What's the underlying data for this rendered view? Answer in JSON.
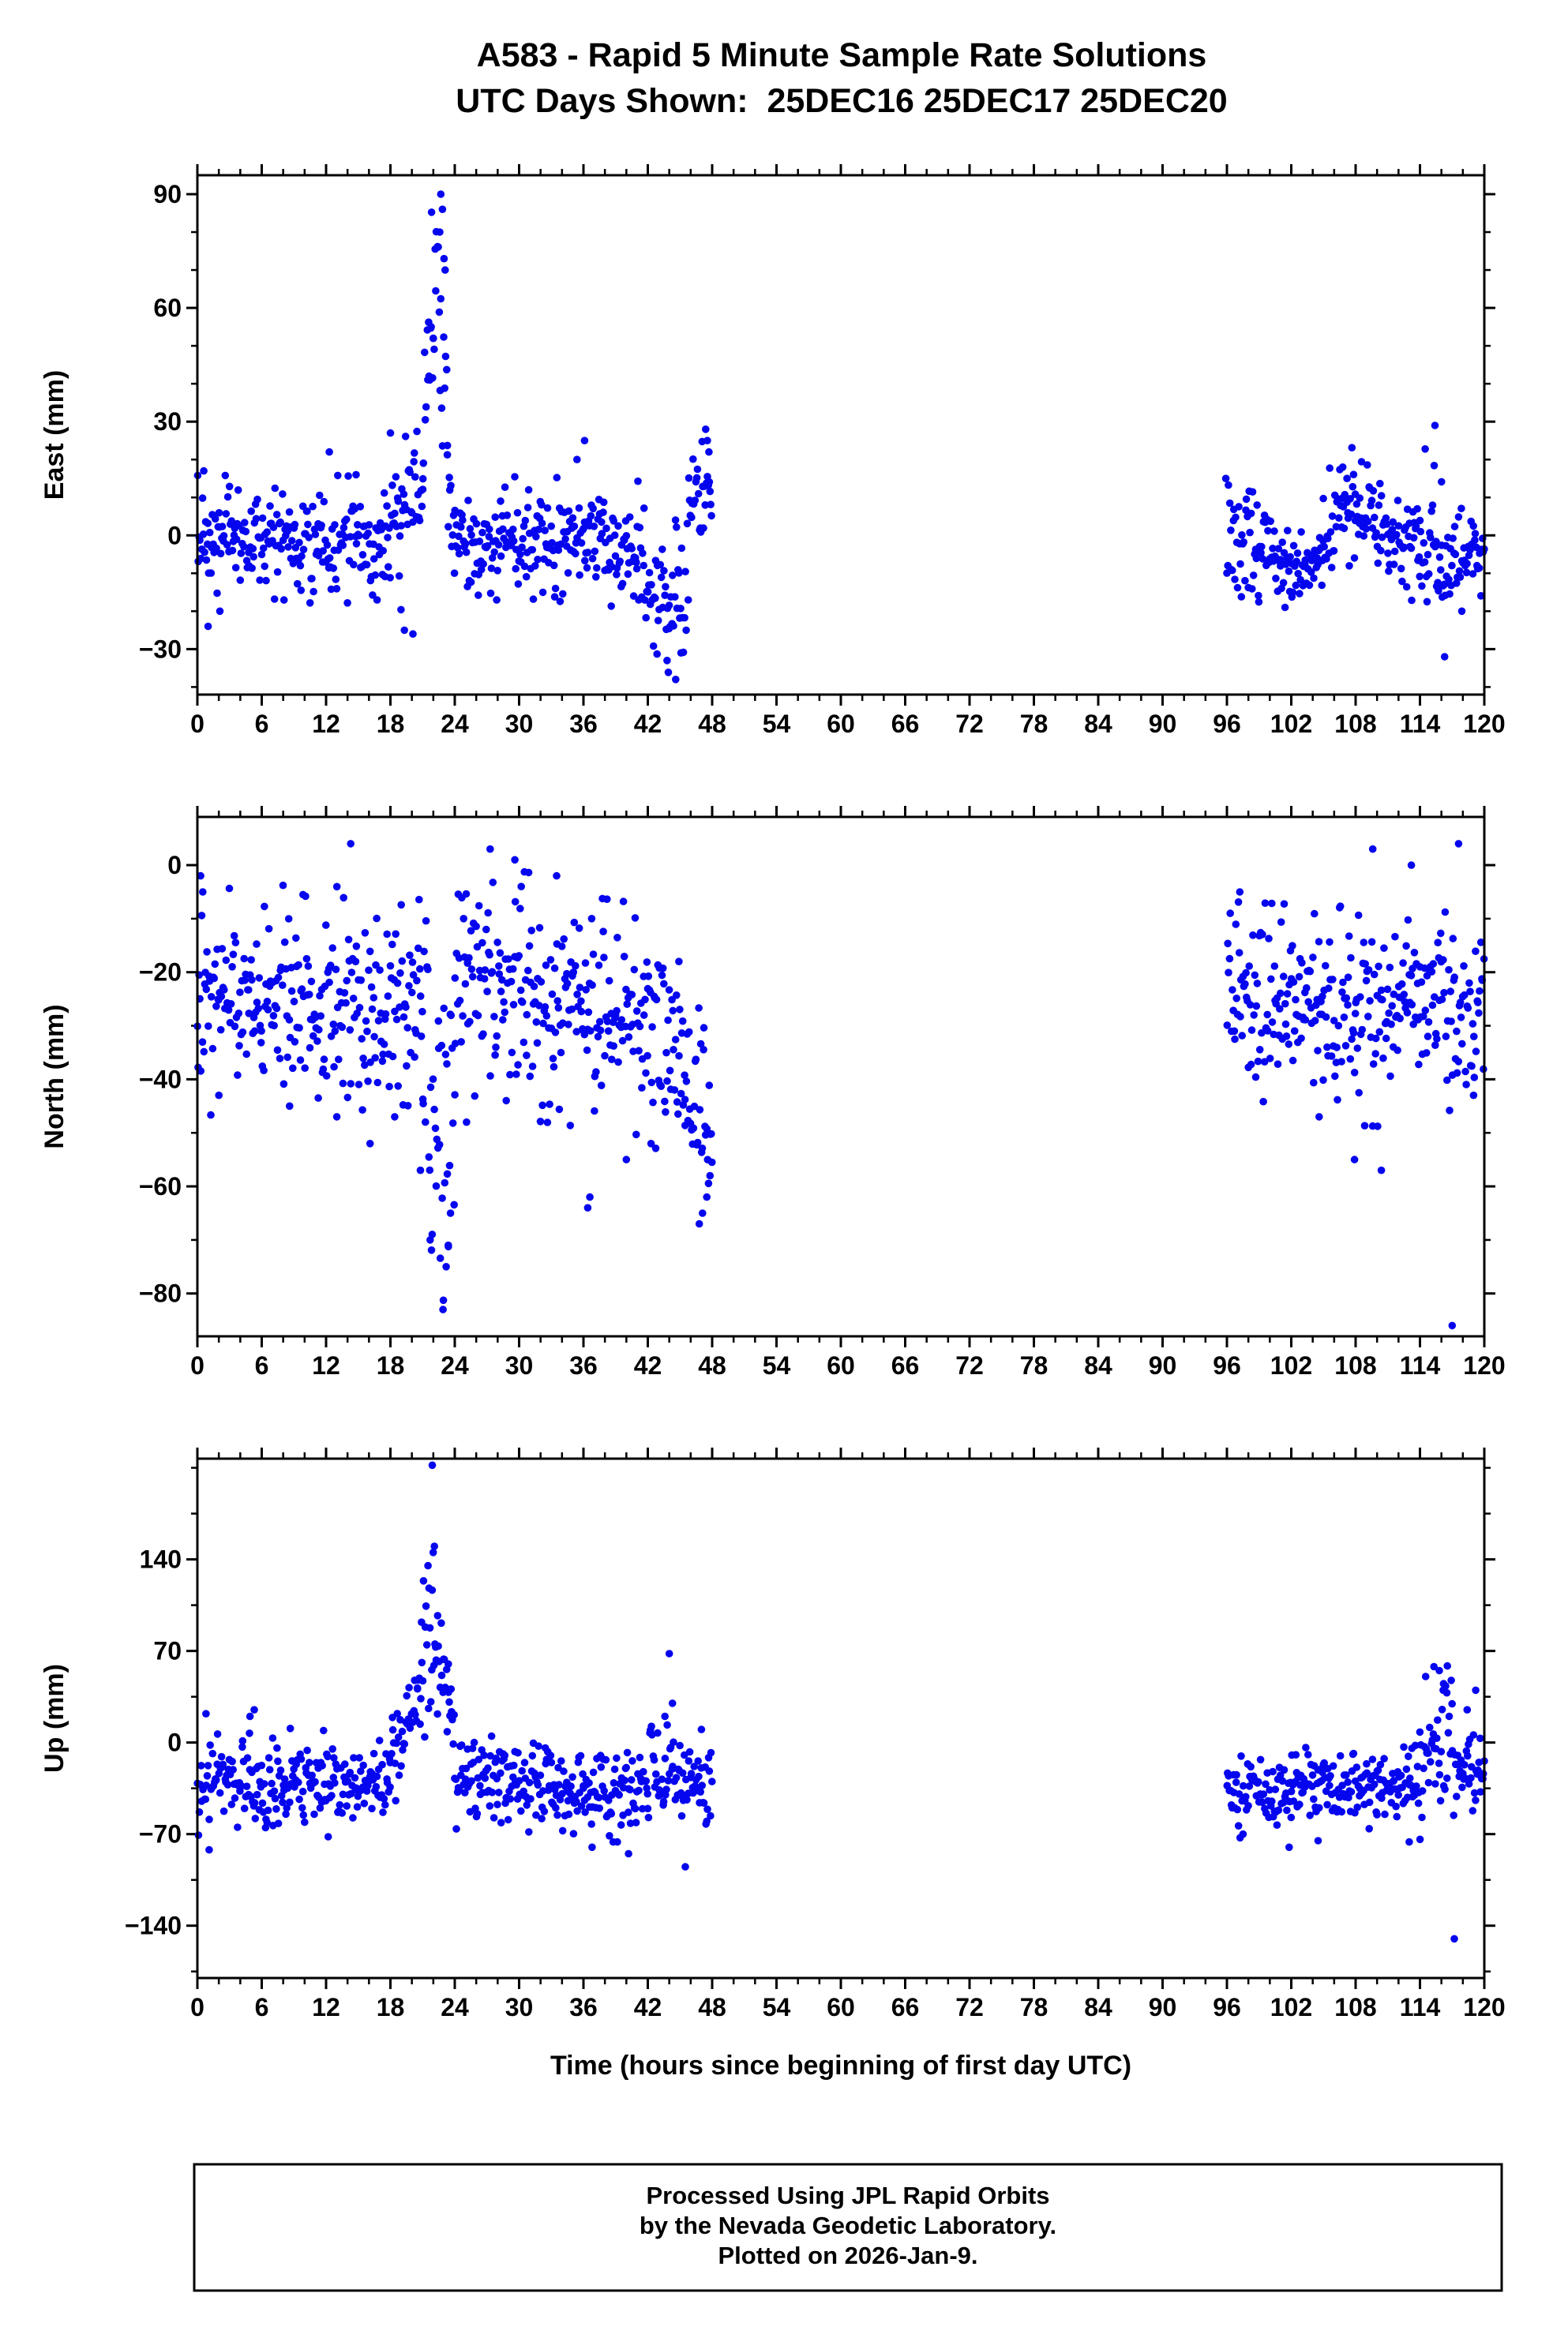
{
  "title": "A583 - Rapid 5 Minute Sample Rate Solutions",
  "subtitle": "UTC Days Shown:  25DEC16 25DEC17 25DEC20",
  "footer": {
    "line1": "Processed Using JPL Rapid Orbits",
    "line2": "by the Nevada Geodetic Laboratory.",
    "line3": "Plotted on 2026-Jan-9."
  },
  "colors": {
    "points": "#0505ee",
    "frame": "#000000"
  },
  "chart_data": {
    "type": "scatter",
    "station": "A583",
    "days_shown": [
      "25DEC16",
      "25DEC17",
      "25DEC20"
    ],
    "sample_interval_hours": 0.0833,
    "xlabel": "Time (hours since beginning of first day UTC)",
    "xlim": [
      0,
      120
    ],
    "x_major_ticks": [
      0,
      6,
      12,
      18,
      24,
      30,
      36,
      42,
      48,
      54,
      60,
      66,
      72,
      78,
      84,
      90,
      96,
      102,
      108,
      114,
      120
    ],
    "x_minor_step": 2,
    "data_gaps_hours": [
      [
        48,
        96
      ]
    ],
    "panels": [
      {
        "name": "East",
        "ylabel": "East (mm)",
        "ylim": [
          -42,
          95
        ],
        "y_major_ticks": [
          -30,
          0,
          30,
          60,
          90
        ],
        "y_minor_step": 10,
        "trend_segments": [
          [
            0,
            19,
            -1,
            -1,
            7
          ],
          [
            19,
            21,
            2,
            14,
            9
          ],
          [
            21,
            22.3,
            22,
            72,
            13
          ],
          [
            22.3,
            23.3,
            72,
            25,
            12
          ],
          [
            23.3,
            24,
            12,
            2,
            8
          ],
          [
            24,
            41,
            -1,
            -2,
            7
          ],
          [
            41,
            44,
            -6,
            -19,
            9
          ],
          [
            44,
            45.8,
            -18,
            -8,
            9
          ],
          [
            45.8,
            48,
            3,
            14,
            7
          ],
          [
            96,
            101,
            -1,
            -5,
            6
          ],
          [
            101,
            105,
            -7,
            -7,
            5
          ],
          [
            105,
            108,
            1,
            7,
            7
          ],
          [
            108,
            111,
            6,
            1,
            6
          ],
          [
            111,
            114,
            -2,
            -3,
            6
          ],
          [
            114,
            116,
            1,
            4,
            9
          ],
          [
            116,
            120,
            -7,
            -3,
            6
          ]
        ],
        "outlier_points": [
          [
            0.6,
            17
          ],
          [
            1.0,
            -24
          ],
          [
            2.1,
            -20
          ],
          [
            12.3,
            22
          ],
          [
            14.8,
            16
          ],
          [
            18.0,
            27
          ],
          [
            19.3,
            -25
          ],
          [
            20.1,
            -26
          ],
          [
            21.6,
            42
          ],
          [
            21.8,
            55
          ],
          [
            22.0,
            52
          ],
          [
            22.6,
            80
          ],
          [
            22.7,
            90
          ],
          [
            22.85,
            86
          ],
          [
            23.0,
            73
          ],
          [
            23.1,
            70
          ],
          [
            35.4,
            20
          ],
          [
            36.1,
            25
          ],
          [
            43.8,
            -33
          ],
          [
            44.6,
            -38
          ],
          [
            45.1,
            -31
          ],
          [
            47.4,
            28
          ],
          [
            47.55,
            25
          ],
          [
            47.7,
            22
          ],
          [
            95.9,
            15
          ],
          [
            106.8,
            18
          ],
          [
            107.2,
            15
          ],
          [
            115.4,
            29
          ],
          [
            116.3,
            -32
          ],
          [
            117.9,
            -20
          ]
        ]
      },
      {
        "name": "North",
        "ylabel": "North (mm)",
        "ylim": [
          -88,
          9
        ],
        "y_major_ticks": [
          -80,
          -60,
          -40,
          -20,
          0
        ],
        "y_minor_step": 10,
        "trend_segments": [
          [
            0,
            21,
            -25,
            -26,
            9
          ],
          [
            21,
            22.5,
            -32,
            -52,
            12
          ],
          [
            22.5,
            24,
            -52,
            -45,
            13
          ],
          [
            24,
            31,
            -21,
            -23,
            9
          ],
          [
            31,
            42,
            -26,
            -29,
            9
          ],
          [
            42,
            45.5,
            -30,
            -36,
            9
          ],
          [
            45.5,
            48,
            -42,
            -53,
            9
          ],
          [
            96,
            108,
            -26,
            -27,
            8
          ],
          [
            108,
            120,
            -27,
            -28,
            9
          ]
        ],
        "outlier_points": [
          [
            0.3,
            -2
          ],
          [
            0.5,
            -5
          ],
          [
            2.0,
            -43
          ],
          [
            8.6,
            -45
          ],
          [
            13.0,
            -47
          ],
          [
            14.3,
            4
          ],
          [
            16.1,
            -52
          ],
          [
            18.4,
            -47
          ],
          [
            20.8,
            -57
          ],
          [
            21.7,
            -70
          ],
          [
            22.9,
            -83
          ],
          [
            23.2,
            -75
          ],
          [
            23.4,
            -71
          ],
          [
            23.6,
            -65
          ],
          [
            25.1,
            -48
          ],
          [
            27.3,
            3
          ],
          [
            29.6,
            1
          ],
          [
            30.2,
            -4
          ],
          [
            33.5,
            -2
          ],
          [
            36.4,
            -64
          ],
          [
            36.6,
            -62
          ],
          [
            40.0,
            -55
          ],
          [
            42.3,
            -52
          ],
          [
            44.9,
            -18
          ],
          [
            46.8,
            -67
          ],
          [
            47.1,
            -65
          ],
          [
            47.5,
            -62
          ],
          [
            47.8,
            -58
          ],
          [
            97.2,
            -5
          ],
          [
            104.6,
            -47
          ],
          [
            107.9,
            -55
          ],
          [
            109.6,
            3
          ],
          [
            110.4,
            -57
          ],
          [
            113.2,
            0
          ],
          [
            117.0,
            -86
          ],
          [
            117.6,
            4
          ],
          [
            119.0,
            -43
          ]
        ]
      },
      {
        "name": "Up",
        "ylabel": "Up (mm)",
        "ylim": [
          -180,
          217
        ],
        "y_major_ticks": [
          -140,
          -70,
          0,
          70,
          140
        ],
        "y_minor_step": 35,
        "trend_segments": [
          [
            0,
            18,
            -30,
            -30,
            17
          ],
          [
            18,
            20.5,
            -12,
            30,
            17
          ],
          [
            20.5,
            22.3,
            45,
            95,
            26
          ],
          [
            22.3,
            24,
            70,
            8,
            20
          ],
          [
            24,
            36,
            -30,
            -34,
            15
          ],
          [
            36,
            42,
            -40,
            -40,
            15
          ],
          [
            42,
            45,
            -26,
            -30,
            21
          ],
          [
            45,
            48,
            -34,
            -34,
            15
          ],
          [
            96,
            102,
            -42,
            -40,
            13
          ],
          [
            102,
            110,
            -35,
            -35,
            13
          ],
          [
            110,
            114,
            -33,
            -28,
            15
          ],
          [
            114,
            117,
            -12,
            2,
            26
          ],
          [
            117,
            120,
            -20,
            -14,
            15
          ]
        ],
        "outlier_points": [
          [
            0.8,
            22
          ],
          [
            1.1,
            -82
          ],
          [
            4.9,
            20
          ],
          [
            5.3,
            25
          ],
          [
            12.2,
            -72
          ],
          [
            20.9,
            92
          ],
          [
            21.6,
            118
          ],
          [
            21.9,
            212
          ],
          [
            22.1,
            150
          ],
          [
            22.4,
            97
          ],
          [
            23.4,
            60
          ],
          [
            36.8,
            -80
          ],
          [
            40.2,
            -85
          ],
          [
            43.6,
            20
          ],
          [
            44.0,
            68
          ],
          [
            44.3,
            30
          ],
          [
            45.5,
            -95
          ],
          [
            47.0,
            10
          ],
          [
            97.5,
            -70
          ],
          [
            101.8,
            -80
          ],
          [
            104.5,
            -75
          ],
          [
            113.0,
            -76
          ],
          [
            115.3,
            58
          ],
          [
            115.8,
            55
          ],
          [
            116.2,
            45
          ],
          [
            116.5,
            38
          ],
          [
            117.2,
            -150
          ],
          [
            118.4,
            25
          ],
          [
            119.2,
            40
          ]
        ]
      }
    ]
  }
}
